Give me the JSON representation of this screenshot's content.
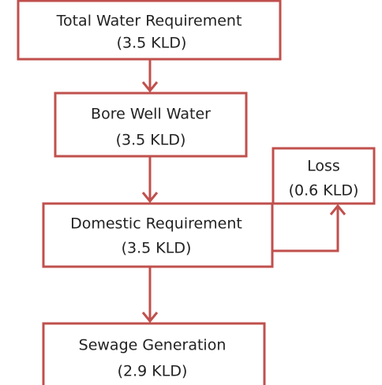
{
  "nodes": [
    {
      "label": "Total Water Requirement",
      "value": "(3.5 KLD)"
    },
    {
      "label": "Bore Well Water",
      "value": "(3.5 KLD)"
    },
    {
      "label": "Domestic Requirement",
      "value": "(3.5 KLD)"
    },
    {
      "label": "Loss",
      "value": "(0.6 KLD)"
    },
    {
      "label": "Sewage Generation",
      "value": "(2.9 KLD)"
    }
  ]
}
